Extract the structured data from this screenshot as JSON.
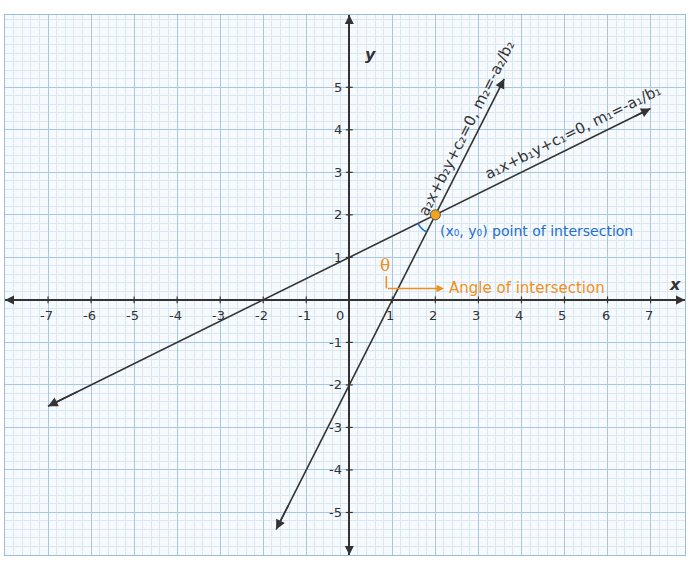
{
  "chart_data": {
    "type": "line",
    "xlabel": "x",
    "ylabel": "y",
    "xlim": [
      -8,
      7.8
    ],
    "ylim": [
      -6,
      6.7
    ],
    "xticks": [
      -7,
      -6,
      -5,
      -4,
      -3,
      -2,
      -1,
      0,
      1,
      2,
      3,
      4,
      5,
      6,
      7
    ],
    "yticks": [
      -5,
      -4,
      -3,
      -2,
      -1,
      1,
      2,
      3,
      4,
      5
    ],
    "grid": true,
    "series": [
      {
        "x": [
          -7,
          2,
          7
        ],
        "values": [
          -2.5,
          2,
          4.5
        ],
        "color": "#333333",
        "label": "a₁x+b₁y+c₁=0, m₁=-a₁/b₁"
      },
      {
        "x": [
          -1.7,
          2,
          3.6
        ],
        "values": [
          -5.4,
          2,
          5.2
        ],
        "color": "#333333",
        "label": "a₂x+b₂y+c₂=0, m₂=-a₂/b₂"
      }
    ],
    "point": {
      "x": 2,
      "y": 2,
      "color": "#f5a31a",
      "label": "(x₀, y₀) point of intersection",
      "label_color": "#1e6fd0"
    },
    "angle": {
      "symbol": "θ",
      "label": "Angle of intersection",
      "color": "#f0901a",
      "arc_color": "#1e6fd0"
    }
  }
}
